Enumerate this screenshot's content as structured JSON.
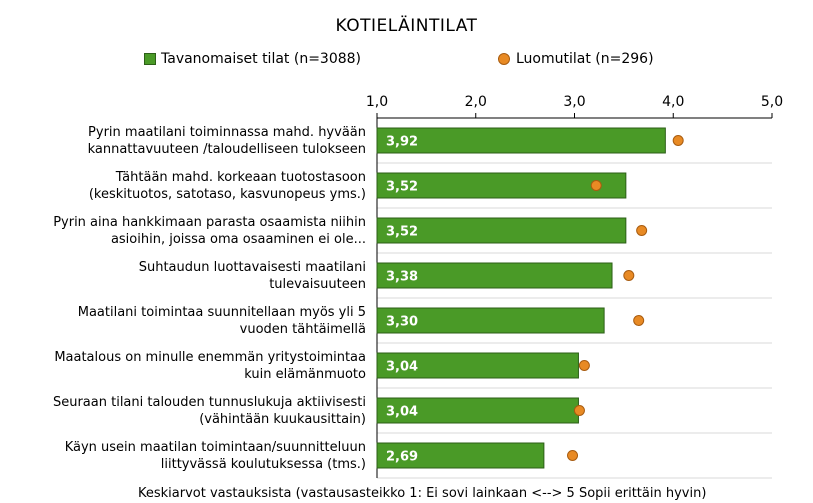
{
  "chart_data": {
    "type": "bar",
    "orientation": "horizontal",
    "title": "KOTIELÄINTILAT",
    "xlabel": "Keskiarvot vastauksista (vastausasteikko 1: Ei sovi lainkaan <--> 5 Sopii erittäin hyvin)",
    "xlim": [
      1.0,
      5.0
    ],
    "x_ticks": [
      "1,0",
      "2,0",
      "3,0",
      "4,0",
      "5,0"
    ],
    "legend_position": "top",
    "categories": [
      [
        "Pyrin maatilani toiminnassa mahd. hyvään",
        "kannattavuuteen /taloudelliseen tulokseen"
      ],
      [
        "Tähtään mahd. korkeaan tuotostasoon",
        "(keskituotos, satotaso, kasvunopeus yms.)"
      ],
      [
        "Pyrin aina hankkimaan parasta osaamista niihin",
        "asioihin, joissa oma osaaminen ei ole..."
      ],
      [
        "Suhtaudun luottavaisesti maatilani",
        "tulevaisuuteen"
      ],
      [
        "Maatilani toimintaa suunnitellaan myös yli 5",
        "vuoden tähtäimellä"
      ],
      [
        "Maatalous on minulle enemmän yritystoimintaa",
        "kuin elämänmuoto"
      ],
      [
        "Seuraan tilani talouden tunnuslukuja aktiivisesti",
        "(vähintään kuukausittain)"
      ],
      [
        "Käyn usein maatilan toimintaan/suunnitteluun",
        "liittyvässä koulutuksessa (tms.)"
      ]
    ],
    "series": [
      {
        "name": "Tavanomaiset tilat (n=3088)",
        "type": "bar",
        "color": "#4a9a27",
        "values": [
          3.92,
          3.52,
          3.52,
          3.38,
          3.3,
          3.04,
          3.04,
          2.69
        ],
        "value_labels": [
          "3,92",
          "3,52",
          "3,52",
          "3,38",
          "3,30",
          "3,04",
          "3,04",
          "2,69"
        ]
      },
      {
        "name": "Luomutilat (n=296)",
        "type": "dot",
        "color": "#e88a24",
        "values": [
          4.05,
          3.22,
          3.68,
          3.55,
          3.65,
          3.1,
          3.05,
          2.98
        ]
      }
    ]
  }
}
